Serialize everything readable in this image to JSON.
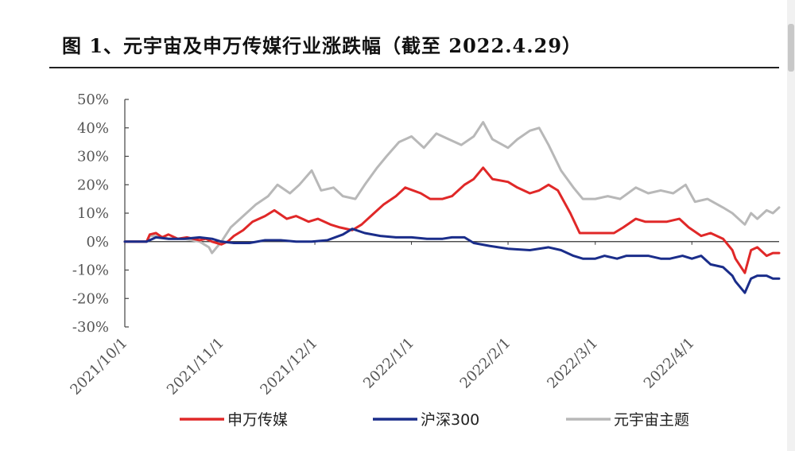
{
  "title": "图 1、元宇宙及申万传媒行业涨跌幅（截至 2022.4.29）",
  "chart_data": {
    "type": "line",
    "title": "图 1、元宇宙及申万传媒行业涨跌幅（截至 2022.4.29）",
    "xlabel": "",
    "ylabel": "",
    "ylim": [
      -30,
      50
    ],
    "y_ticks": [
      "50%",
      "40%",
      "30%",
      "20%",
      "10%",
      "0%",
      "-10%",
      "-20%",
      "-30%"
    ],
    "x_ticks": [
      "2021/10/1",
      "2021/11/1",
      "2021/12/1",
      "2022/1/1",
      "2022/2/1",
      "2022/3/1",
      "2022/4/1"
    ],
    "x_range": [
      "2021/10/1",
      "2022/4/29"
    ],
    "grid": false,
    "legend_position": "bottom",
    "series": [
      {
        "name": "申万传媒",
        "color": "#e02828",
        "points": [
          [
            "2021/10/1",
            0
          ],
          [
            "2021/10/8",
            0
          ],
          [
            "2021/10/9",
            2.5
          ],
          [
            "2021/10/11",
            3
          ],
          [
            "2021/10/13",
            1.5
          ],
          [
            "2021/10/15",
            2.5
          ],
          [
            "2021/10/18",
            1
          ],
          [
            "2021/10/21",
            1.5
          ],
          [
            "2021/10/25",
            0.5
          ],
          [
            "2021/10/27",
            1
          ],
          [
            "2021/10/29",
            0
          ],
          [
            "2021/11/1",
            -1
          ],
          [
            "2021/11/3",
            0
          ],
          [
            "2021/11/5",
            2
          ],
          [
            "2021/11/8",
            4
          ],
          [
            "2021/11/11",
            7
          ],
          [
            "2021/11/15",
            9
          ],
          [
            "2021/11/18",
            11
          ],
          [
            "2021/11/22",
            8
          ],
          [
            "2021/11/25",
            9
          ],
          [
            "2021/11/29",
            7
          ],
          [
            "2021/12/2",
            8
          ],
          [
            "2021/12/6",
            6
          ],
          [
            "2021/12/9",
            5
          ],
          [
            "2021/12/13",
            4
          ],
          [
            "2021/12/16",
            6
          ],
          [
            "2021/12/20",
            10
          ],
          [
            "2021/12/23",
            13
          ],
          [
            "2021/12/27",
            16
          ],
          [
            "2021/12/30",
            19
          ],
          [
            "2022/1/4",
            17
          ],
          [
            "2022/1/7",
            15
          ],
          [
            "2022/1/11",
            15
          ],
          [
            "2022/1/14",
            16
          ],
          [
            "2022/1/18",
            20
          ],
          [
            "2022/1/21",
            22
          ],
          [
            "2022/1/24",
            26
          ],
          [
            "2022/1/27",
            22
          ],
          [
            "2022/2/1",
            21
          ],
          [
            "2022/2/4",
            19
          ],
          [
            "2022/2/8",
            17
          ],
          [
            "2022/2/11",
            18
          ],
          [
            "2022/2/14",
            20
          ],
          [
            "2022/2/17",
            18
          ],
          [
            "2022/2/21",
            10
          ],
          [
            "2022/2/24",
            3
          ],
          [
            "2022/2/28",
            3
          ],
          [
            "2022/3/3",
            3
          ],
          [
            "2022/3/7",
            3
          ],
          [
            "2022/3/10",
            5
          ],
          [
            "2022/3/14",
            8
          ],
          [
            "2022/3/17",
            7
          ],
          [
            "2022/3/21",
            7
          ],
          [
            "2022/3/24",
            7
          ],
          [
            "2022/3/28",
            8
          ],
          [
            "2022/3/31",
            5
          ],
          [
            "2022/4/4",
            2
          ],
          [
            "2022/4/7",
            3
          ],
          [
            "2022/4/11",
            1
          ],
          [
            "2022/4/14",
            -3
          ],
          [
            "2022/4/15",
            -6
          ],
          [
            "2022/4/18",
            -11
          ],
          [
            "2022/4/20",
            -3
          ],
          [
            "2022/4/22",
            -2
          ],
          [
            "2022/4/25",
            -5
          ],
          [
            "2022/4/27",
            -4
          ],
          [
            "2022/4/29",
            -4
          ]
        ]
      },
      {
        "name": "沪深300",
        "color": "#1a2d8a",
        "points": [
          [
            "2021/10/1",
            0
          ],
          [
            "2021/10/8",
            0
          ],
          [
            "2021/10/11",
            1.5
          ],
          [
            "2021/10/15",
            1
          ],
          [
            "2021/10/20",
            1
          ],
          [
            "2021/10/25",
            1.5
          ],
          [
            "2021/10/29",
            1
          ],
          [
            "2021/11/1",
            0
          ],
          [
            "2021/11/5",
            -0.5
          ],
          [
            "2021/11/10",
            -0.5
          ],
          [
            "2021/11/15",
            0.5
          ],
          [
            "2021/11/20",
            0.5
          ],
          [
            "2021/11/25",
            0
          ],
          [
            "2021/11/30",
            0
          ],
          [
            "2021/12/5",
            0.5
          ],
          [
            "2021/12/10",
            2.5
          ],
          [
            "2021/12/13",
            4.5
          ],
          [
            "2021/12/17",
            3
          ],
          [
            "2021/12/22",
            2
          ],
          [
            "2021/12/27",
            1.5
          ],
          [
            "2022/1/1",
            1.5
          ],
          [
            "2022/1/6",
            1
          ],
          [
            "2022/1/11",
            1
          ],
          [
            "2022/1/14",
            1.5
          ],
          [
            "2022/1/18",
            1.5
          ],
          [
            "2022/1/21",
            -0.5
          ],
          [
            "2022/1/26",
            -1.5
          ],
          [
            "2022/2/1",
            -2.5
          ],
          [
            "2022/2/8",
            -3
          ],
          [
            "2022/2/14",
            -2
          ],
          [
            "2022/2/18",
            -3
          ],
          [
            "2022/2/22",
            -5
          ],
          [
            "2022/2/25",
            -6
          ],
          [
            "2022/3/1",
            -6
          ],
          [
            "2022/3/4",
            -5
          ],
          [
            "2022/3/8",
            -6
          ],
          [
            "2022/3/11",
            -5
          ],
          [
            "2022/3/15",
            -5
          ],
          [
            "2022/3/18",
            -5
          ],
          [
            "2022/3/22",
            -6
          ],
          [
            "2022/3/25",
            -6
          ],
          [
            "2022/3/29",
            -5
          ],
          [
            "2022/4/1",
            -6
          ],
          [
            "2022/4/4",
            -5
          ],
          [
            "2022/4/7",
            -8
          ],
          [
            "2022/4/11",
            -9
          ],
          [
            "2022/4/14",
            -12
          ],
          [
            "2022/4/15",
            -14
          ],
          [
            "2022/4/18",
            -18
          ],
          [
            "2022/4/20",
            -13
          ],
          [
            "2022/4/22",
            -12
          ],
          [
            "2022/4/25",
            -12
          ],
          [
            "2022/4/27",
            -13
          ],
          [
            "2022/4/29",
            -13
          ]
        ]
      },
      {
        "name": "元宇宙主题",
        "color": "#b8b8b8",
        "points": [
          [
            "2021/10/1",
            0
          ],
          [
            "2021/10/8",
            0
          ],
          [
            "2021/10/9",
            2
          ],
          [
            "2021/10/12",
            2
          ],
          [
            "2021/10/15",
            1
          ],
          [
            "2021/10/20",
            1
          ],
          [
            "2021/10/25",
            0
          ],
          [
            "2021/10/28",
            -2
          ],
          [
            "2021/10/29",
            -4
          ],
          [
            "2021/11/1",
            0
          ],
          [
            "2021/11/4",
            5
          ],
          [
            "2021/11/8",
            9
          ],
          [
            "2021/11/12",
            13
          ],
          [
            "2021/11/16",
            16
          ],
          [
            "2021/11/19",
            20
          ],
          [
            "2021/11/23",
            17
          ],
          [
            "2021/11/26",
            20
          ],
          [
            "2021/11/30",
            25
          ],
          [
            "2021/12/3",
            18
          ],
          [
            "2021/12/7",
            19
          ],
          [
            "2021/12/10",
            16
          ],
          [
            "2021/12/14",
            15
          ],
          [
            "2021/12/17",
            20
          ],
          [
            "2021/12/21",
            26
          ],
          [
            "2021/12/24",
            30
          ],
          [
            "2021/12/28",
            35
          ],
          [
            "2022/1/1",
            37
          ],
          [
            "2022/1/5",
            33
          ],
          [
            "2022/1/9",
            38
          ],
          [
            "2022/1/13",
            36
          ],
          [
            "2022/1/17",
            34
          ],
          [
            "2022/1/21",
            37
          ],
          [
            "2022/1/24",
            42
          ],
          [
            "2022/1/27",
            36
          ],
          [
            "2022/2/1",
            33
          ],
          [
            "2022/2/4",
            36
          ],
          [
            "2022/2/8",
            39
          ],
          [
            "2022/2/11",
            40
          ],
          [
            "2022/2/14",
            34
          ],
          [
            "2022/2/18",
            25
          ],
          [
            "2022/2/22",
            19
          ],
          [
            "2022/2/25",
            15
          ],
          [
            "2022/3/1",
            15
          ],
          [
            "2022/3/5",
            16
          ],
          [
            "2022/3/9",
            15
          ],
          [
            "2022/3/14",
            19
          ],
          [
            "2022/3/18",
            17
          ],
          [
            "2022/3/22",
            18
          ],
          [
            "2022/3/26",
            17
          ],
          [
            "2022/3/30",
            20
          ],
          [
            "2022/4/2",
            14
          ],
          [
            "2022/4/6",
            15
          ],
          [
            "2022/4/11",
            12
          ],
          [
            "2022/4/14",
            10
          ],
          [
            "2022/4/18",
            6
          ],
          [
            "2022/4/20",
            10
          ],
          [
            "2022/4/22",
            8
          ],
          [
            "2022/4/25",
            11
          ],
          [
            "2022/4/27",
            10
          ],
          [
            "2022/4/29",
            12
          ]
        ]
      }
    ]
  }
}
